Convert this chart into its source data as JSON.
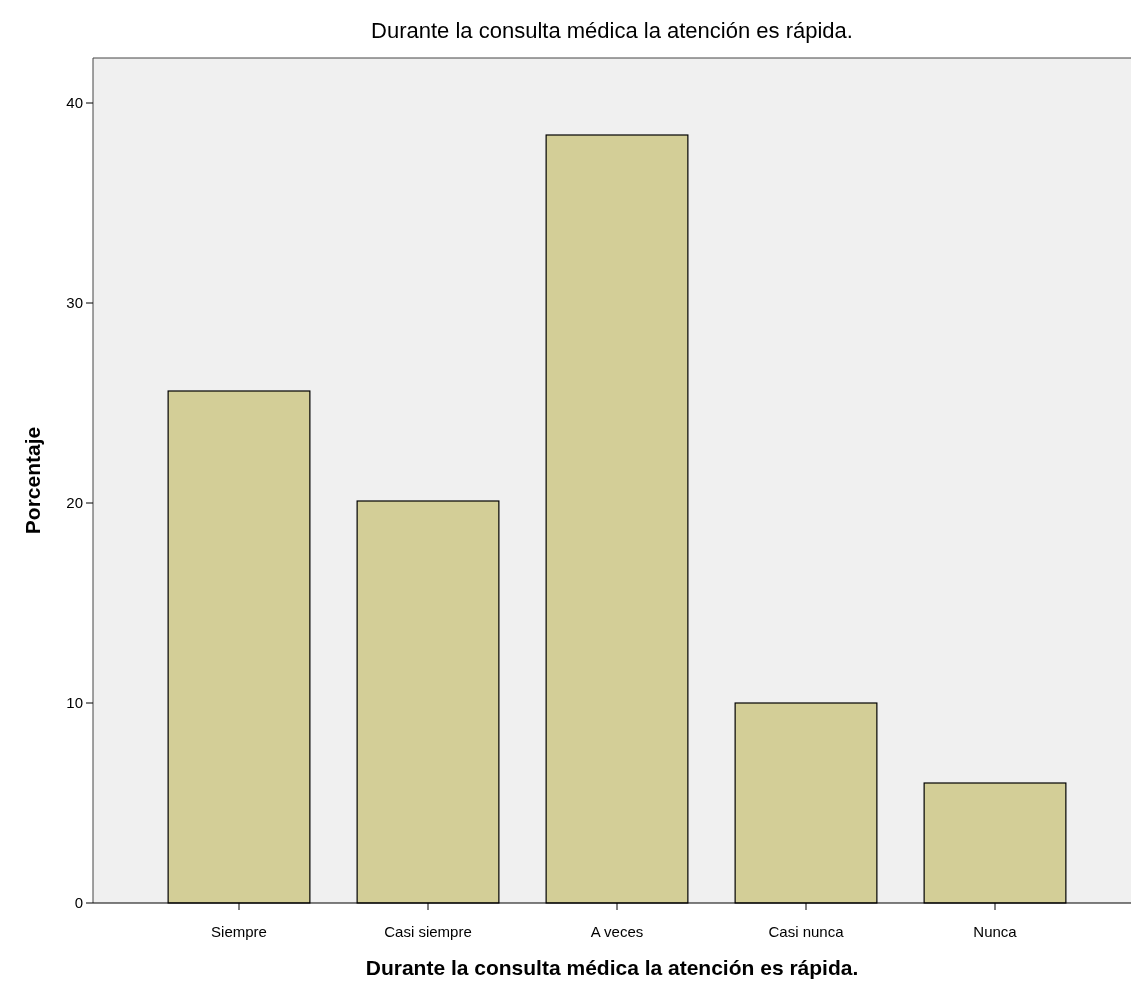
{
  "chart_data": {
    "type": "bar",
    "title": "Durante la consulta médica la atención es rápida.",
    "xlabel": "Durante la consulta médica la atención es rápida.",
    "ylabel": "Porcentaje",
    "categories": [
      "Siempre",
      "Casi siempre",
      "A veces",
      "Casi nunca",
      "Nunca"
    ],
    "values": [
      25.6,
      20.1,
      38.4,
      10.0,
      6.0
    ],
    "color": "#d3ce97",
    "ylim": [
      0,
      42.25
    ],
    "yticks": [
      0,
      10,
      20,
      30,
      40
    ],
    "grid": false
  }
}
